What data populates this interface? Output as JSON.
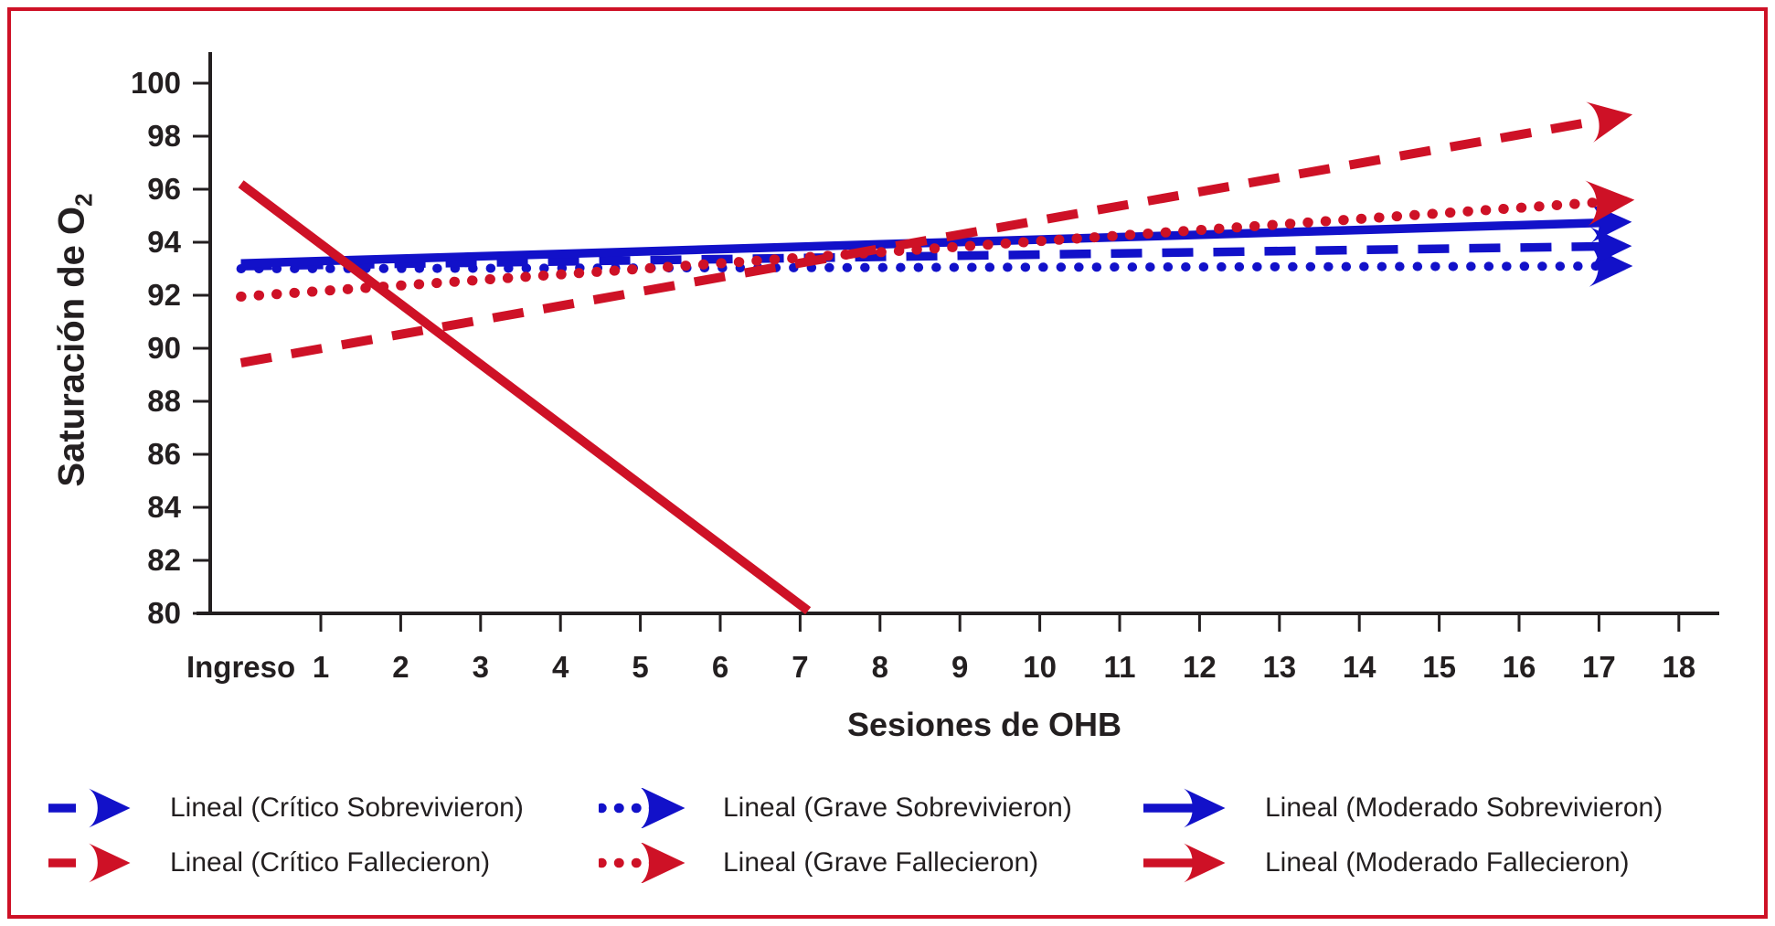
{
  "figure": {
    "border_color": "#ce1126",
    "background_color": "#ffffff"
  },
  "chart_data": {
    "type": "line",
    "title": "",
    "xlabel": "Sesiones de OHB",
    "ylabel": "Saturación de O",
    "ylabel_subscript": "2",
    "x_tick_labels": [
      "Ingreso",
      "1",
      "2",
      "3",
      "4",
      "5",
      "6",
      "7",
      "8",
      "9",
      "10",
      "11",
      "12",
      "13",
      "14",
      "15",
      "16",
      "17",
      "18"
    ],
    "y_ticks": [
      80,
      82,
      84,
      86,
      88,
      90,
      92,
      94,
      96,
      98,
      100
    ],
    "ylim": [
      80,
      100
    ],
    "grid": "off",
    "legend_position": "bottom",
    "colors": {
      "blue": "#1211c9",
      "red": "#ce1126",
      "axis": "#231f20",
      "text": "#231f20"
    },
    "series": [
      {
        "name": "Lineal (Crítico Sobrevivieron)",
        "color": "blue",
        "style": "dashed",
        "arrow": true,
        "x": [
          0,
          17.2
        ],
        "y": [
          93.1,
          93.85
        ]
      },
      {
        "name": "Lineal (Grave Sobrevivieron)",
        "color": "blue",
        "style": "dotted",
        "arrow": true,
        "x": [
          0,
          17.2
        ],
        "y": [
          93.0,
          93.1
        ]
      },
      {
        "name": "Lineal (Moderado Sobrevivieron)",
        "color": "blue",
        "style": "solid",
        "arrow": true,
        "x": [
          0,
          17.2
        ],
        "y": [
          93.2,
          94.75
        ]
      },
      {
        "name": "Lineal (Crítico Fallecieron)",
        "color": "red",
        "style": "dashed",
        "arrow": true,
        "x": [
          0,
          17.2
        ],
        "y": [
          89.45,
          98.7
        ]
      },
      {
        "name": "Lineal (Grave Fallecieron)",
        "color": "red",
        "style": "dotted",
        "arrow": true,
        "x": [
          0,
          17.2
        ],
        "y": [
          91.95,
          95.55
        ]
      },
      {
        "name": "Lineal (Moderado Fallecieron)",
        "color": "red",
        "style": "solid",
        "arrow": false,
        "x": [
          0,
          7.1
        ],
        "y": [
          96.2,
          80.1
        ]
      }
    ]
  }
}
